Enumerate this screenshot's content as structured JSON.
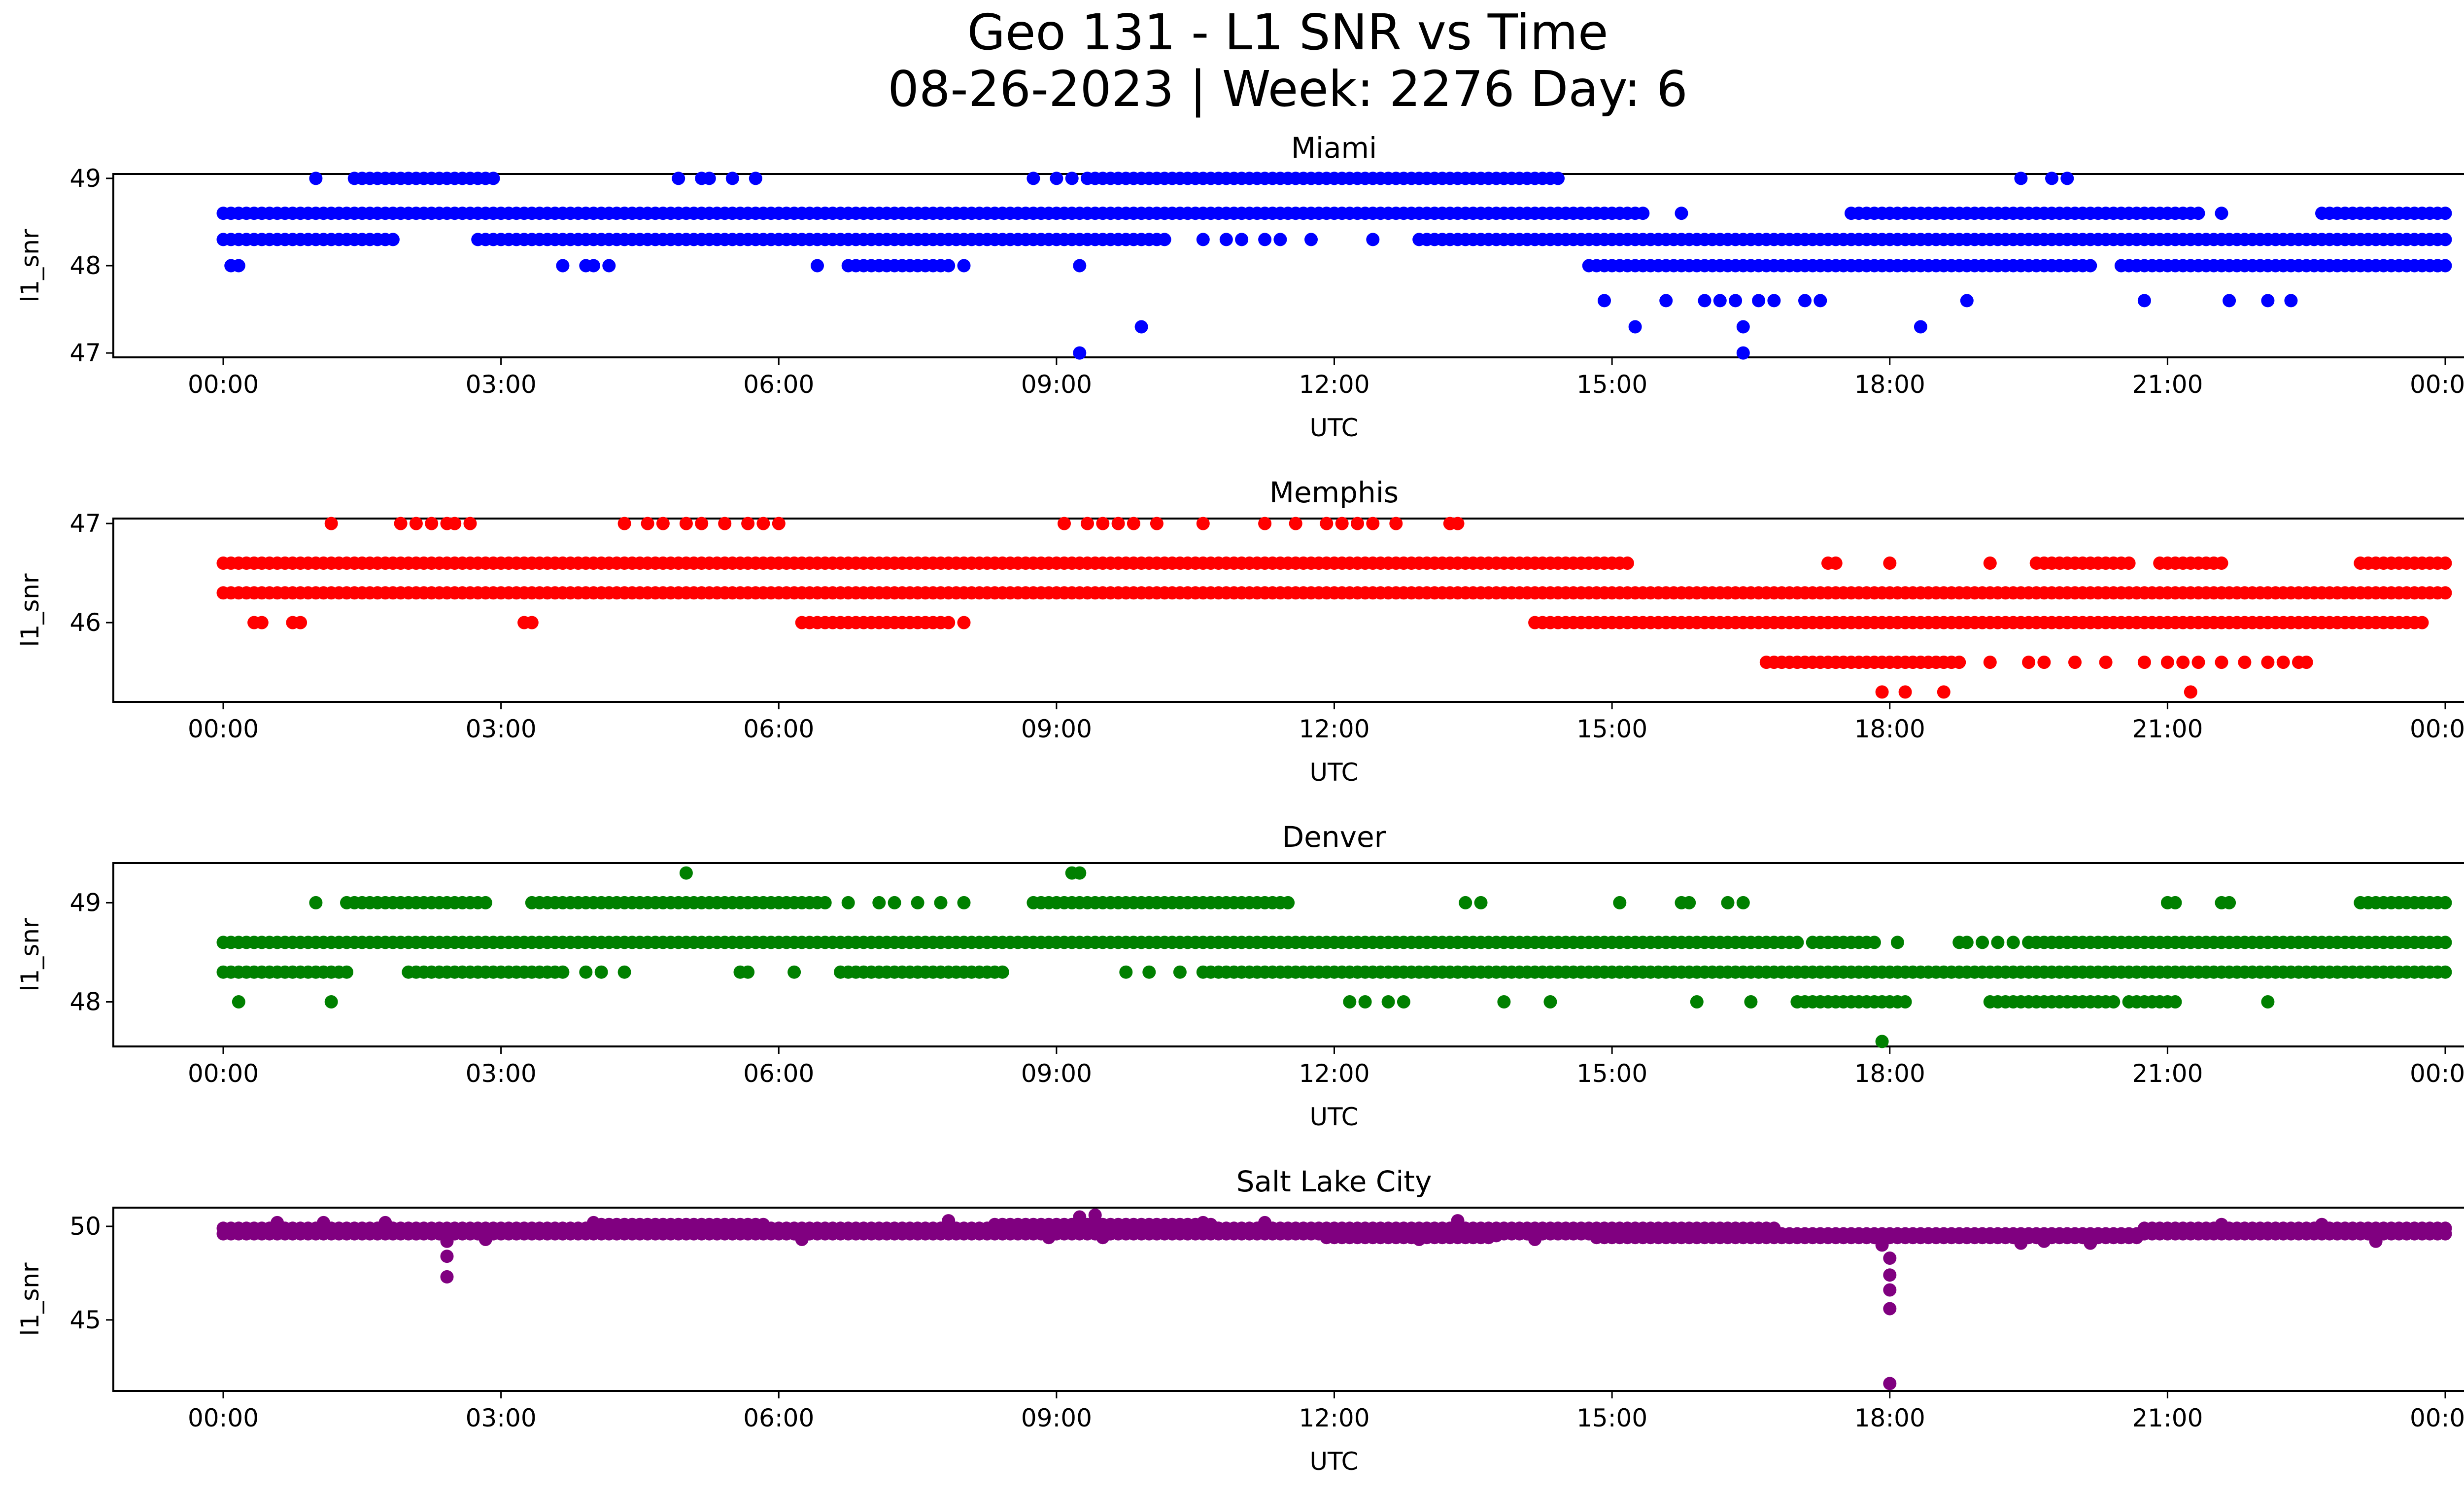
{
  "figure": {
    "title_line1": "Geo 131 - L1 SNR vs Time",
    "title_line2": "08-26-2023 | Week: 2276 Day: 6"
  },
  "chart_data": [
    {
      "type": "scatter",
      "title": "Miami",
      "xlabel": "UTC",
      "ylabel": "l1_snr",
      "color": "#0000ff",
      "xlim": [
        "2023-08-26T00:00",
        "2023-08-27T00:00"
      ],
      "ylim": [
        46.95,
        49.05
      ],
      "xticks": [
        "00:00",
        "03:00",
        "06:00",
        "09:00",
        "12:00",
        "15:00",
        "18:00",
        "21:00",
        "00:00"
      ],
      "yticks": [
        47,
        48,
        49
      ],
      "bands": [
        {
          "y": 48.6,
          "ranges": [
            [
              "00:00",
              "10:55"
            ],
            [
              "11:00",
              "15:20"
            ],
            [
              "17:35",
              "21:20"
            ],
            [
              "22:40",
              "24:00"
            ]
          ]
        },
        {
          "y": 48.3,
          "ranges": [
            [
              "00:00",
              "01:50"
            ],
            [
              "02:45",
              "10:10"
            ],
            [
              "12:55",
              "24:00"
            ]
          ]
        },
        {
          "y": 48.0,
          "ranges": [
            [
              "06:45",
              "07:50"
            ],
            [
              "14:45",
              "20:10"
            ],
            [
              "20:30",
              "24:00"
            ]
          ]
        },
        {
          "y": 49.0,
          "ranges": [
            [
              "01:25",
              "02:50"
            ],
            [
              "09:20",
              "14:25"
            ]
          ]
        }
      ],
      "points": [
        {
          "x": "00:05",
          "y": 48.0
        },
        {
          "x": "00:10",
          "y": 48.0
        },
        {
          "x": "01:00",
          "y": 49.0
        },
        {
          "x": "02:55",
          "y": 49.0
        },
        {
          "x": "03:40",
          "y": 48.0
        },
        {
          "x": "03:55",
          "y": 48.0
        },
        {
          "x": "04:00",
          "y": 48.0
        },
        {
          "x": "04:10",
          "y": 48.0
        },
        {
          "x": "04:55",
          "y": 49.0
        },
        {
          "x": "05:10",
          "y": 49.0
        },
        {
          "x": "05:15",
          "y": 49.0
        },
        {
          "x": "05:30",
          "y": 49.0
        },
        {
          "x": "05:45",
          "y": 49.0
        },
        {
          "x": "06:25",
          "y": 48.0
        },
        {
          "x": "08:00",
          "y": 48.0
        },
        {
          "x": "08:45",
          "y": 49.0
        },
        {
          "x": "09:00",
          "y": 49.0
        },
        {
          "x": "09:10",
          "y": 49.0
        },
        {
          "x": "09:15",
          "y": 48.0
        },
        {
          "x": "09:15",
          "y": 47.0
        },
        {
          "x": "09:55",
          "y": 47.3
        },
        {
          "x": "10:35",
          "y": 48.3
        },
        {
          "x": "10:50",
          "y": 48.3
        },
        {
          "x": "11:00",
          "y": 48.3
        },
        {
          "x": "11:15",
          "y": 48.3
        },
        {
          "x": "11:25",
          "y": 48.3
        },
        {
          "x": "11:45",
          "y": 48.3
        },
        {
          "x": "12:25",
          "y": 48.3
        },
        {
          "x": "14:55",
          "y": 47.6
        },
        {
          "x": "15:15",
          "y": 47.3
        },
        {
          "x": "15:35",
          "y": 47.6
        },
        {
          "x": "15:45",
          "y": 48.6
        },
        {
          "x": "16:00",
          "y": 47.6
        },
        {
          "x": "16:10",
          "y": 47.6
        },
        {
          "x": "16:20",
          "y": 47.6
        },
        {
          "x": "16:25",
          "y": 47.3
        },
        {
          "x": "16:25",
          "y": 47.0
        },
        {
          "x": "16:35",
          "y": 47.6
        },
        {
          "x": "16:45",
          "y": 47.6
        },
        {
          "x": "17:05",
          "y": 47.6
        },
        {
          "x": "17:15",
          "y": 47.6
        },
        {
          "x": "18:20",
          "y": 47.3
        },
        {
          "x": "18:50",
          "y": 47.6
        },
        {
          "x": "19:25",
          "y": 49.0
        },
        {
          "x": "19:45",
          "y": 49.0
        },
        {
          "x": "19:55",
          "y": 49.0
        },
        {
          "x": "20:40",
          "y": 48.0
        },
        {
          "x": "20:45",
          "y": 47.6
        },
        {
          "x": "21:35",
          "y": 48.6
        },
        {
          "x": "21:40",
          "y": 47.6
        },
        {
          "x": "22:05",
          "y": 47.6
        },
        {
          "x": "22:20",
          "y": 47.6
        },
        {
          "x": "23:10",
          "y": 48.0
        },
        {
          "x": "23:35",
          "y": 48.0
        },
        {
          "x": "23:55",
          "y": 48.0
        }
      ]
    },
    {
      "type": "scatter",
      "title": "Memphis",
      "xlabel": "UTC",
      "ylabel": "l1_snr",
      "color": "#ff0000",
      "xlim": [
        "2023-08-26T00:00",
        "2023-08-27T00:00"
      ],
      "ylim": [
        45.2,
        47.05
      ],
      "xticks": [
        "00:00",
        "03:00",
        "06:00",
        "09:00",
        "12:00",
        "15:00",
        "18:00",
        "21:00",
        "00:00"
      ],
      "yticks": [
        46,
        47
      ],
      "bands": [
        {
          "y": 46.3,
          "ranges": [
            [
              "00:00",
              "24:00"
            ]
          ]
        },
        {
          "y": 46.6,
          "ranges": [
            [
              "00:00",
              "15:10"
            ],
            [
              "19:35",
              "20:35"
            ],
            [
              "20:55",
              "21:35"
            ],
            [
              "23:05",
              "24:00"
            ]
          ]
        },
        {
          "y": 46.0,
          "ranges": [
            [
              "06:15",
              "07:50"
            ],
            [
              "14:10",
              "23:45"
            ]
          ]
        },
        {
          "y": 45.6,
          "ranges": [
            [
              "16:40",
              "18:45"
            ]
          ]
        }
      ],
      "points": [
        {
          "x": "00:20",
          "y": 46.0
        },
        {
          "x": "00:25",
          "y": 46.0
        },
        {
          "x": "00:45",
          "y": 46.0
        },
        {
          "x": "00:50",
          "y": 46.0
        },
        {
          "x": "01:10",
          "y": 47.0
        },
        {
          "x": "01:55",
          "y": 47.0
        },
        {
          "x": "02:05",
          "y": 47.0
        },
        {
          "x": "02:15",
          "y": 47.0
        },
        {
          "x": "02:25",
          "y": 47.0
        },
        {
          "x": "02:30",
          "y": 47.0
        },
        {
          "x": "02:40",
          "y": 47.0
        },
        {
          "x": "03:15",
          "y": 46.0
        },
        {
          "x": "03:20",
          "y": 46.0
        },
        {
          "x": "04:20",
          "y": 47.0
        },
        {
          "x": "04:35",
          "y": 47.0
        },
        {
          "x": "04:45",
          "y": 47.0
        },
        {
          "x": "05:00",
          "y": 47.0
        },
        {
          "x": "05:10",
          "y": 47.0
        },
        {
          "x": "05:25",
          "y": 47.0
        },
        {
          "x": "05:40",
          "y": 47.0
        },
        {
          "x": "05:50",
          "y": 47.0
        },
        {
          "x": "06:00",
          "y": 47.0
        },
        {
          "x": "08:00",
          "y": 46.0
        },
        {
          "x": "09:05",
          "y": 47.0
        },
        {
          "x": "09:20",
          "y": 47.0
        },
        {
          "x": "09:30",
          "y": 47.0
        },
        {
          "x": "09:40",
          "y": 47.0
        },
        {
          "x": "09:50",
          "y": 47.0
        },
        {
          "x": "10:05",
          "y": 47.0
        },
        {
          "x": "10:35",
          "y": 47.0
        },
        {
          "x": "11:15",
          "y": 47.0
        },
        {
          "x": "11:35",
          "y": 47.0
        },
        {
          "x": "11:55",
          "y": 47.0
        },
        {
          "x": "12:05",
          "y": 47.0
        },
        {
          "x": "12:15",
          "y": 47.0
        },
        {
          "x": "12:25",
          "y": 47.0
        },
        {
          "x": "12:40",
          "y": 47.0
        },
        {
          "x": "13:15",
          "y": 47.0
        },
        {
          "x": "13:20",
          "y": 47.0
        },
        {
          "x": "17:20",
          "y": 46.6
        },
        {
          "x": "17:25",
          "y": 46.6
        },
        {
          "x": "17:55",
          "y": 45.3
        },
        {
          "x": "18:00",
          "y": 46.6
        },
        {
          "x": "18:10",
          "y": 45.3
        },
        {
          "x": "18:35",
          "y": 45.3
        },
        {
          "x": "19:05",
          "y": 46.6
        },
        {
          "x": "19:05",
          "y": 45.6
        },
        {
          "x": "19:30",
          "y": 45.6
        },
        {
          "x": "19:40",
          "y": 45.6
        },
        {
          "x": "20:00",
          "y": 45.6
        },
        {
          "x": "20:20",
          "y": 45.6
        },
        {
          "x": "20:45",
          "y": 45.6
        },
        {
          "x": "21:00",
          "y": 45.6
        },
        {
          "x": "21:10",
          "y": 45.6
        },
        {
          "x": "21:15",
          "y": 45.3
        },
        {
          "x": "21:20",
          "y": 45.6
        },
        {
          "x": "21:35",
          "y": 45.6
        },
        {
          "x": "21:50",
          "y": 45.6
        },
        {
          "x": "22:05",
          "y": 45.6
        },
        {
          "x": "22:15",
          "y": 45.6
        },
        {
          "x": "22:25",
          "y": 45.6
        },
        {
          "x": "22:30",
          "y": 45.6
        }
      ]
    },
    {
      "type": "scatter",
      "title": "Denver",
      "xlabel": "UTC",
      "ylabel": "l1_snr",
      "color": "#008000",
      "xlim": [
        "2023-08-26T00:00",
        "2023-08-27T00:00"
      ],
      "ylim": [
        47.55,
        49.4
      ],
      "xticks": [
        "00:00",
        "03:00",
        "06:00",
        "09:00",
        "12:00",
        "15:00",
        "18:00",
        "21:00",
        "00:00"
      ],
      "yticks": [
        48,
        49
      ],
      "bands": [
        {
          "y": 48.6,
          "ranges": [
            [
              "00:00",
              "17:00"
            ],
            [
              "17:10",
              "17:50"
            ],
            [
              "19:30",
              "24:00"
            ]
          ]
        },
        {
          "y": 48.3,
          "ranges": [
            [
              "00:00",
              "01:20"
            ],
            [
              "02:00",
              "03:40"
            ],
            [
              "06:40",
              "08:25"
            ],
            [
              "10:35",
              "24:00"
            ]
          ]
        },
        {
          "y": 49.0,
          "ranges": [
            [
              "01:20",
              "02:45"
            ],
            [
              "03:20",
              "06:30"
            ],
            [
              "08:45",
              "11:30"
            ],
            [
              "23:05",
              "24:00"
            ]
          ]
        },
        {
          "y": 48.0,
          "ranges": [
            [
              "17:00",
              "18:10"
            ],
            [
              "19:05",
              "20:25"
            ],
            [
              "20:35",
              "21:05"
            ]
          ]
        }
      ],
      "points": [
        {
          "x": "00:10",
          "y": 48.0
        },
        {
          "x": "01:00",
          "y": 49.0
        },
        {
          "x": "01:10",
          "y": 48.0
        },
        {
          "x": "02:50",
          "y": 49.0
        },
        {
          "x": "03:55",
          "y": 48.3
        },
        {
          "x": "04:05",
          "y": 48.3
        },
        {
          "x": "04:20",
          "y": 48.3
        },
        {
          "x": "05:00",
          "y": 49.3
        },
        {
          "x": "05:35",
          "y": 48.3
        },
        {
          "x": "05:40",
          "y": 48.3
        },
        {
          "x": "06:10",
          "y": 48.3
        },
        {
          "x": "06:45",
          "y": 49.0
        },
        {
          "x": "07:05",
          "y": 49.0
        },
        {
          "x": "07:15",
          "y": 49.0
        },
        {
          "x": "07:30",
          "y": 49.0
        },
        {
          "x": "07:45",
          "y": 49.0
        },
        {
          "x": "08:00",
          "y": 49.0
        },
        {
          "x": "09:10",
          "y": 49.3
        },
        {
          "x": "09:15",
          "y": 49.3
        },
        {
          "x": "09:45",
          "y": 48.3
        },
        {
          "x": "10:00",
          "y": 48.3
        },
        {
          "x": "10:20",
          "y": 48.3
        },
        {
          "x": "12:10",
          "y": 48.0
        },
        {
          "x": "12:20",
          "y": 48.0
        },
        {
          "x": "12:35",
          "y": 48.0
        },
        {
          "x": "12:45",
          "y": 48.0
        },
        {
          "x": "13:25",
          "y": 49.0
        },
        {
          "x": "13:35",
          "y": 49.0
        },
        {
          "x": "13:50",
          "y": 48.0
        },
        {
          "x": "14:20",
          "y": 48.0
        },
        {
          "x": "15:05",
          "y": 49.0
        },
        {
          "x": "15:45",
          "y": 49.0
        },
        {
          "x": "15:50",
          "y": 49.0
        },
        {
          "x": "15:55",
          "y": 48.0
        },
        {
          "x": "16:15",
          "y": 49.0
        },
        {
          "x": "16:25",
          "y": 49.0
        },
        {
          "x": "16:30",
          "y": 48.0
        },
        {
          "x": "17:55",
          "y": 47.6
        },
        {
          "x": "18:05",
          "y": 48.6
        },
        {
          "x": "18:45",
          "y": 48.6
        },
        {
          "x": "18:50",
          "y": 48.6
        },
        {
          "x": "19:00",
          "y": 48.6
        },
        {
          "x": "19:10",
          "y": 48.6
        },
        {
          "x": "19:20",
          "y": 48.6
        },
        {
          "x": "19:45",
          "y": 48.6
        },
        {
          "x": "21:00",
          "y": 49.0
        },
        {
          "x": "21:05",
          "y": 49.0
        },
        {
          "x": "21:35",
          "y": 49.0
        },
        {
          "x": "21:40",
          "y": 49.0
        },
        {
          "x": "22:05",
          "y": 48.0
        },
        {
          "x": "23:45",
          "y": 48.3
        }
      ]
    },
    {
      "type": "scatter",
      "title": "Salt Lake City",
      "xlabel": "UTC",
      "ylabel": "l1_snr",
      "color": "#800080",
      "xlim": [
        "2023-08-26T00:00",
        "2023-08-27T00:00"
      ],
      "ylim": [
        41.2,
        51.0
      ],
      "xticks": [
        "00:00",
        "03:00",
        "06:00",
        "09:00",
        "12:00",
        "15:00",
        "18:00",
        "21:00",
        "00:00"
      ],
      "yticks": [
        45,
        50
      ],
      "bands": [
        {
          "y": 49.9,
          "ranges": [
            [
              "00:00",
              "11:45"
            ],
            [
              "11:50",
              "16:45"
            ],
            [
              "20:45",
              "24:00"
            ]
          ]
        },
        {
          "y": 49.6,
          "ranges": [
            [
              "00:00",
              "24:00"
            ]
          ]
        },
        {
          "y": 50.1,
          "ranges": [
            [
              "04:05",
              "05:50"
            ],
            [
              "08:20",
              "10:40"
            ]
          ]
        },
        {
          "y": 49.4,
          "ranges": [
            [
              "11:55",
              "13:40"
            ],
            [
              "14:50",
              "20:40"
            ]
          ]
        }
      ],
      "points": [
        {
          "x": "00:35",
          "y": 50.2
        },
        {
          "x": "01:05",
          "y": 50.2
        },
        {
          "x": "01:45",
          "y": 50.2
        },
        {
          "x": "02:05",
          "y": 49.6
        },
        {
          "x": "02:25",
          "y": 49.2
        },
        {
          "x": "02:25",
          "y": 48.4
        },
        {
          "x": "02:25",
          "y": 47.3
        },
        {
          "x": "02:50",
          "y": 49.3
        },
        {
          "x": "04:00",
          "y": 50.2
        },
        {
          "x": "06:15",
          "y": 49.3
        },
        {
          "x": "07:50",
          "y": 50.3
        },
        {
          "x": "08:55",
          "y": 49.4
        },
        {
          "x": "09:15",
          "y": 50.5
        },
        {
          "x": "09:25",
          "y": 50.6
        },
        {
          "x": "09:30",
          "y": 49.4
        },
        {
          "x": "10:35",
          "y": 50.2
        },
        {
          "x": "11:15",
          "y": 50.2
        },
        {
          "x": "12:55",
          "y": 49.3
        },
        {
          "x": "13:20",
          "y": 50.3
        },
        {
          "x": "13:45",
          "y": 49.5
        },
        {
          "x": "14:10",
          "y": 49.3
        },
        {
          "x": "17:55",
          "y": 49.0
        },
        {
          "x": "18:00",
          "y": 48.3
        },
        {
          "x": "18:00",
          "y": 47.4
        },
        {
          "x": "18:00",
          "y": 46.6
        },
        {
          "x": "18:00",
          "y": 45.6
        },
        {
          "x": "18:00",
          "y": 41.6
        },
        {
          "x": "19:25",
          "y": 49.1
        },
        {
          "x": "19:40",
          "y": 49.2
        },
        {
          "x": "20:10",
          "y": 49.1
        },
        {
          "x": "21:35",
          "y": 50.1
        },
        {
          "x": "22:40",
          "y": 50.1
        },
        {
          "x": "23:15",
          "y": 49.2
        }
      ]
    }
  ]
}
